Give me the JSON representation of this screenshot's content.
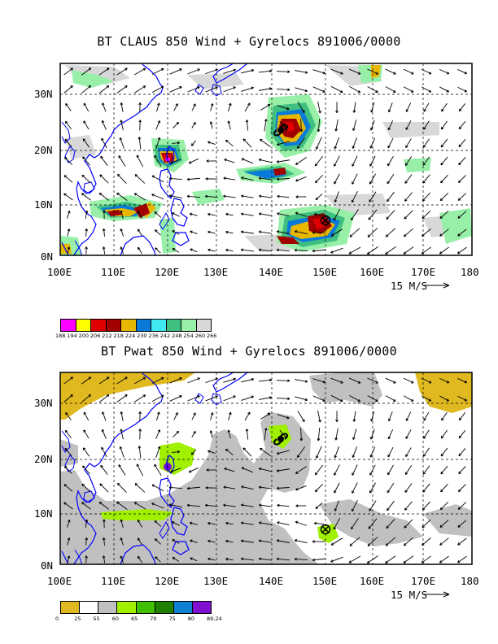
{
  "panel1": {
    "title": "BT CLAUS 850 Wind + Gyrelocs 891006/0000",
    "scale_text": "15 M/S",
    "colorbar": {
      "labels": [
        "188",
        "194",
        "200",
        "206",
        "212",
        "218",
        "224",
        "230",
        "236",
        "242",
        "248",
        "254",
        "260",
        "266"
      ],
      "colors": [
        "#ff00ff",
        "#ffff00",
        "#e00000",
        "#a00000",
        "#e8b800",
        "#0a7ad8",
        "#40e8f0",
        "#40c080",
        "#98f0a8",
        "#d8d8d8"
      ]
    }
  },
  "panel2": {
    "title": "BT Pwat 850 Wind + Gyrelocs 891006/0000",
    "scale_text": "15 M/S",
    "colorbar": {
      "labels": [
        "0",
        "25",
        "55",
        "60",
        "65",
        "70",
        "75",
        "80",
        "89.24"
      ],
      "colors": [
        "#e0b820",
        "#ffffff",
        "#c0c0c0",
        "#a0f000",
        "#40c000",
        "#208000",
        "#1080d0",
        "#8010d0"
      ]
    }
  },
  "x_ticks": [
    "100E",
    "110E",
    "120E",
    "130E",
    "140E",
    "150E",
    "160E",
    "170E",
    "180"
  ],
  "y_ticks": [
    "0N",
    "10N",
    "20N",
    "30N"
  ],
  "colors": {
    "coast": "#0000ff",
    "grid": "#000000"
  }
}
